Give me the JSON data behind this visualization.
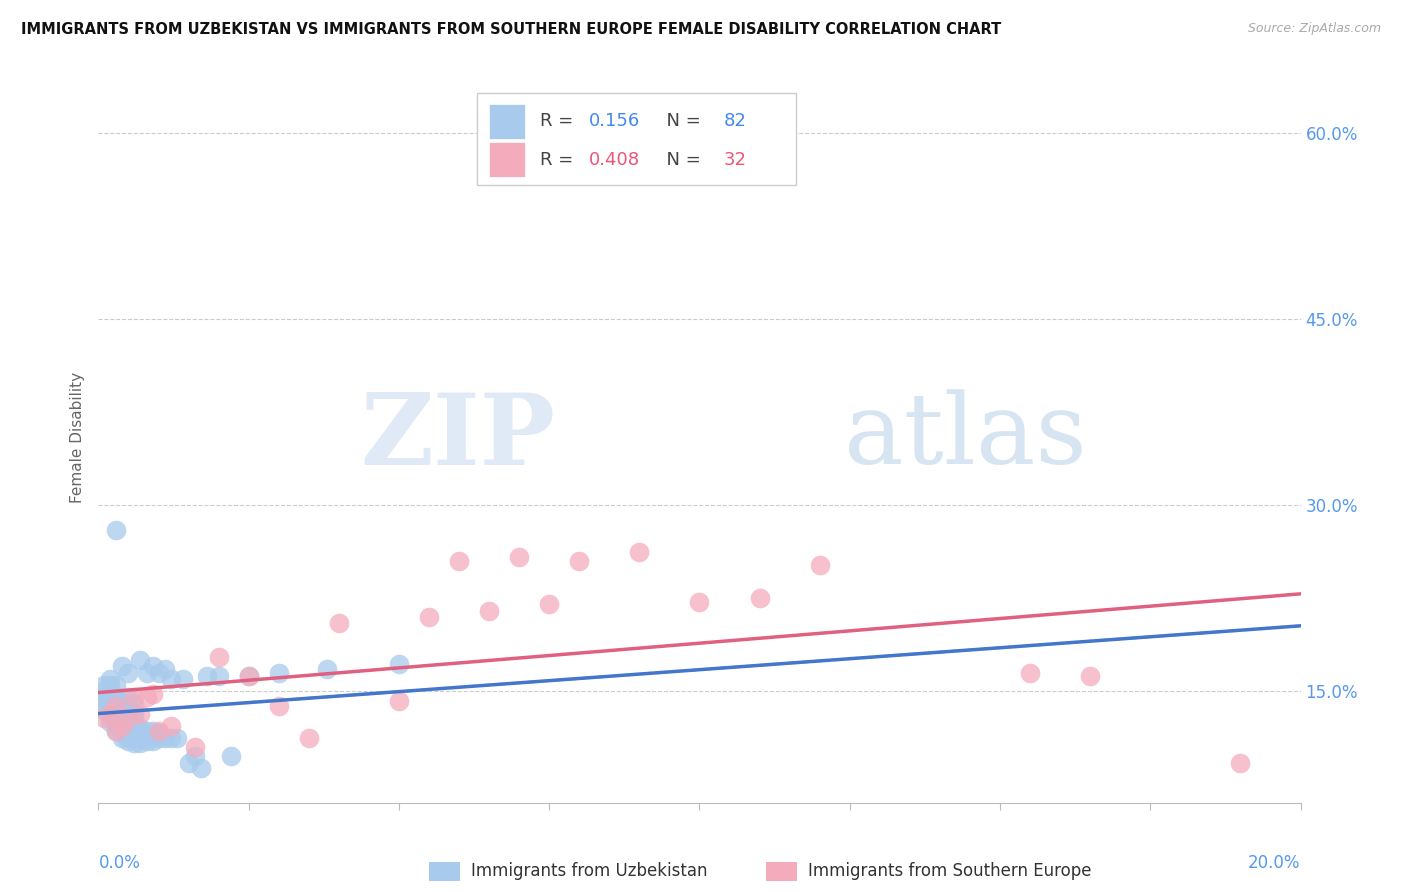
{
  "title": "IMMIGRANTS FROM UZBEKISTAN VS IMMIGRANTS FROM SOUTHERN EUROPE FEMALE DISABILITY CORRELATION CHART",
  "source": "Source: ZipAtlas.com",
  "ylabel": "Female Disability",
  "y_ticks": [
    0.15,
    0.3,
    0.45,
    0.6
  ],
  "y_tick_labels": [
    "15.0%",
    "30.0%",
    "45.0%",
    "60.0%"
  ],
  "legend1_r": "0.156",
  "legend1_n": "82",
  "legend2_r": "0.408",
  "legend2_n": "32",
  "color_blue": "#A8CAEC",
  "color_pink": "#F4ABBC",
  "color_blue_line": "#4477CC",
  "color_pink_line": "#E06080",
  "color_blue_text": "#4488EE",
  "color_pink_text": "#EE5577",
  "color_axis_text": "#5599EE",
  "watermark_zip": "ZIP",
  "watermark_atlas": "atlas",
  "xlim": [
    0.0,
    0.2
  ],
  "ylim": [
    0.06,
    0.65
  ],
  "x_ticks": [
    0.0,
    0.025,
    0.05,
    0.075,
    0.1,
    0.125,
    0.15,
    0.175,
    0.2
  ],
  "series1_x": [
    0.001,
    0.001,
    0.001,
    0.001,
    0.001,
    0.002,
    0.002,
    0.002,
    0.002,
    0.002,
    0.002,
    0.002,
    0.002,
    0.003,
    0.003,
    0.003,
    0.003,
    0.003,
    0.003,
    0.003,
    0.003,
    0.003,
    0.003,
    0.004,
    0.004,
    0.004,
    0.004,
    0.004,
    0.004,
    0.004,
    0.004,
    0.004,
    0.005,
    0.005,
    0.005,
    0.005,
    0.005,
    0.005,
    0.005,
    0.005,
    0.005,
    0.005,
    0.006,
    0.006,
    0.006,
    0.006,
    0.006,
    0.006,
    0.006,
    0.006,
    0.007,
    0.007,
    0.007,
    0.007,
    0.007,
    0.008,
    0.008,
    0.008,
    0.008,
    0.009,
    0.009,
    0.009,
    0.009,
    0.01,
    0.01,
    0.01,
    0.011,
    0.011,
    0.012,
    0.012,
    0.013,
    0.014,
    0.015,
    0.016,
    0.017,
    0.018,
    0.02,
    0.022,
    0.025,
    0.03,
    0.038,
    0.05
  ],
  "series1_y": [
    0.135,
    0.14,
    0.145,
    0.15,
    0.155,
    0.125,
    0.13,
    0.135,
    0.14,
    0.145,
    0.15,
    0.155,
    0.16,
    0.118,
    0.122,
    0.126,
    0.13,
    0.134,
    0.138,
    0.142,
    0.146,
    0.155,
    0.28,
    0.112,
    0.116,
    0.12,
    0.124,
    0.128,
    0.132,
    0.136,
    0.14,
    0.17,
    0.11,
    0.114,
    0.118,
    0.122,
    0.126,
    0.13,
    0.134,
    0.138,
    0.145,
    0.165,
    0.108,
    0.112,
    0.116,
    0.12,
    0.124,
    0.128,
    0.132,
    0.14,
    0.108,
    0.112,
    0.116,
    0.12,
    0.175,
    0.11,
    0.114,
    0.118,
    0.165,
    0.11,
    0.114,
    0.118,
    0.17,
    0.112,
    0.116,
    0.165,
    0.112,
    0.168,
    0.112,
    0.16,
    0.112,
    0.16,
    0.092,
    0.098,
    0.088,
    0.162,
    0.162,
    0.098,
    0.162,
    0.165,
    0.168,
    0.172
  ],
  "series2_x": [
    0.001,
    0.002,
    0.003,
    0.003,
    0.004,
    0.005,
    0.006,
    0.007,
    0.008,
    0.009,
    0.01,
    0.012,
    0.016,
    0.02,
    0.025,
    0.03,
    0.035,
    0.04,
    0.05,
    0.055,
    0.06,
    0.065,
    0.07,
    0.075,
    0.08,
    0.09,
    0.1,
    0.11,
    0.12,
    0.155,
    0.165,
    0.19
  ],
  "series2_y": [
    0.128,
    0.132,
    0.118,
    0.138,
    0.122,
    0.128,
    0.145,
    0.132,
    0.145,
    0.148,
    0.118,
    0.122,
    0.105,
    0.178,
    0.162,
    0.138,
    0.112,
    0.205,
    0.142,
    0.21,
    0.255,
    0.215,
    0.258,
    0.22,
    0.255,
    0.262,
    0.222,
    0.225,
    0.252,
    0.165,
    0.162,
    0.092
  ]
}
